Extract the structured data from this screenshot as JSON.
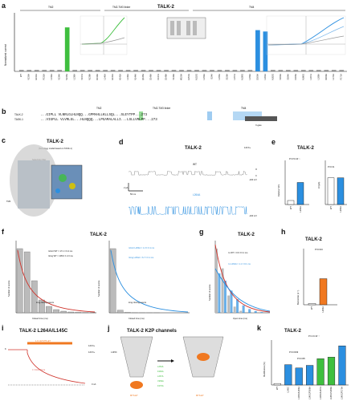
{
  "panel_labels": {
    "a": "a",
    "b": "b",
    "c": "c",
    "d": "d",
    "e": "e",
    "f": "f",
    "g": "g",
    "h": "h",
    "i": "i",
    "j": "j",
    "k": "k"
  },
  "colors": {
    "blue": "#2b8fe0",
    "green": "#3fbf3f",
    "red": "#d0342c",
    "orange": "#f07820",
    "gray": "#888888",
    "dark": "#333333"
  },
  "panel_a": {
    "title": "TALK-2",
    "ylabel": "Normalized current",
    "regions": [
      "TM2",
      "TM2-TM3 linker",
      "TM4"
    ],
    "marked_count": "n=",
    "chart_data": {
      "type": "bar",
      "ylabel": "Normalized current",
      "categories": [
        "WT",
        "V130A",
        "G131A",
        "P132A",
        "L133A",
        "V134A",
        "N135A",
        "L136A",
        "V137A",
        "N138A",
        "R139A",
        "L140A",
        "G141A",
        "H142A",
        "L143A",
        "N144A",
        "Q145A",
        "G146A",
        "F147A",
        "G148A",
        "V149A",
        "M150A",
        "A151G",
        "A152G",
        "L153A",
        "I154A",
        "L155A",
        "S156A",
        "L157A",
        "A158G",
        "L159A",
        "G160A",
        "L161A",
        "A162G",
        "V163A",
        "S164A",
        "F165A",
        "A166G",
        "L167A",
        "L168A",
        "K169A",
        "L170A",
        "F171A"
      ],
      "values": [
        1,
        1,
        1,
        1,
        1,
        1,
        32,
        1,
        1,
        1,
        1,
        1,
        1,
        1,
        1,
        1,
        1,
        1,
        1,
        1,
        1,
        1,
        1,
        1,
        1,
        1,
        1,
        1,
        1,
        1,
        1,
        30,
        29,
        1,
        1,
        1,
        1,
        1,
        1,
        1,
        1,
        1,
        1
      ]
    }
  },
  "panel_b": {
    "header_tm2": "TM2",
    "header_linker": "TM2-TM3 linker",
    "header_tm4": "TM4",
    "rows": [
      {
        "name": "TALK-2",
        "seq": "...GIPLL VLNRLGLHLNQQ...GPMAHLLKLLSQL...SLEYTPP...273"
      },
      {
        "name": "TASK-1",
        "seq": "...VIGPLL VLVRLGL...HLNQQQ...LPGAMALALLI...LSLLVRLPP...273"
      }
    ],
    "footnote": "X-gate"
  },
  "panel_c": {
    "title": "TALK-2",
    "subtitle": "(homology model based on TASK-1)",
    "label_top": "Selectivity filter",
    "label_side": "TM4"
  },
  "panel_d": {
    "title": "TALK-2",
    "wt_label": "WT",
    "mut_label": "L264A",
    "voltage_top": "120 K+",
    "scale_time": "50 ms",
    "scale_current": "2 pA",
    "mv_label_1": "-100 mV",
    "mv_label_2": "-100 mV",
    "o_label": "O",
    "c_label": "C"
  },
  "panel_e": {
    "title": "TALK-2",
    "ylabel_left": "Relative NPo",
    "ylabel_right": "iO (pA)",
    "chart_data": [
      {
        "type": "bar",
        "categories": [
          "WT",
          "L264A"
        ],
        "values": [
          1,
          5.5
        ],
        "ylim": [
          0,
          10
        ]
      },
      {
        "type": "bar",
        "categories": [
          "WT",
          "L264A"
        ],
        "values": [
          4.0,
          4.0
        ],
        "ylim": [
          0,
          6
        ]
      }
    ],
    "sig_left": "P=3.5×10⁻⁵",
    "sig_right": "P=0.31"
  },
  "panel_f": {
    "title": "TALK-2",
    "ylabel": "Number of events",
    "xlabel": "Closed time (ms)",
    "left": {
      "tau_short": "τshort WT = 17.1 ± 0.4 ms",
      "tau_long": "τlong WT = 105.0 ± 2.3 ms",
      "note": "long closing events"
    },
    "right": {
      "tau_short": "τshort L264A = 1.3 ± 0.1 ms",
      "tau_long": "τlong L264A = 6.7 ± 0.1 ms",
      "note": "long closing events"
    },
    "chart_data": [
      {
        "type": "bar",
        "x": [
          0,
          20,
          40,
          60,
          80,
          100,
          120,
          140,
          160,
          180,
          200
        ],
        "values": [
          400,
          380,
          200,
          80,
          40,
          20,
          10,
          5,
          3,
          2,
          1
        ],
        "xlim": [
          0,
          200
        ]
      },
      {
        "type": "bar",
        "x": [
          0,
          20,
          40,
          60,
          80,
          100,
          120,
          140,
          160,
          180,
          200
        ],
        "values": [
          3000,
          120,
          20,
          5,
          2,
          1,
          1,
          0,
          0,
          0,
          0
        ],
        "xlim": [
          0,
          200
        ]
      }
    ]
  },
  "panel_g": {
    "title": "TALK-2",
    "ylabel": "Number of events",
    "xlabel": "Open time (ms)",
    "tau_wt": "τo WT = 0.6 ± 0.1 ms",
    "tau_mut": "τo L264A = 1.1 ± 0.1 ms",
    "chart_data": {
      "type": "bar",
      "x": [
        0,
        1,
        2,
        3,
        4,
        5,
        6,
        7,
        8
      ],
      "series": [
        {
          "name": "WT",
          "values": [
            260,
            180,
            70,
            25,
            8,
            3,
            1,
            0,
            0
          ]
        },
        {
          "name": "L264A",
          "values": [
            160,
            130,
            90,
            55,
            30,
            15,
            7,
            3,
            1
          ]
        }
      ],
      "xlim": [
        0,
        8
      ]
    }
  },
  "panel_h": {
    "title": "TALK-2",
    "ylabel": "Bursts/min (s⁻¹)",
    "sig": "P=0.024",
    "chart_data": {
      "type": "bar",
      "categories": [
        "WT",
        "L264A"
      ],
      "values": [
        1,
        20
      ],
      "ylim": [
        0,
        40
      ]
    }
  },
  "panel_i": {
    "title": "TALK-2 L264A/L145C",
    "label_mts": "1.0 mM MTS-ET",
    "tau": "τ = 0.4 ± 0.1 s",
    "ion_out": "120 K+",
    "ion_in": "120 K+",
    "zero": "0 nA",
    "k_label": "K"
  },
  "panel_j": {
    "title": "TALK-2 K2P channels",
    "site": "L145C",
    "mut_list": [
      "L264A",
      "F266A",
      "L267A",
      "V269A",
      "F270A"
    ],
    "label_left": "MTS-ET",
    "label_right": "MTS-ET"
  },
  "panel_k": {
    "title": "TALK-2",
    "ylabel": "Modification (%)",
    "sig_top": "P=1.6×10⁻⁴",
    "sig_mid": "P=0.0049",
    "sig_low": "P=0.035",
    "chart_data": {
      "type": "bar",
      "categories": [
        "WT",
        "L145C",
        "L145C/L264A",
        "L145C/F266A",
        "L145C/L267A",
        "L145C/V269A",
        "L145C/F270A"
      ],
      "values": [
        0,
        1.2,
        0.8,
        1.1,
        2.5,
        3.0,
        12
      ],
      "ylog": true
    }
  }
}
